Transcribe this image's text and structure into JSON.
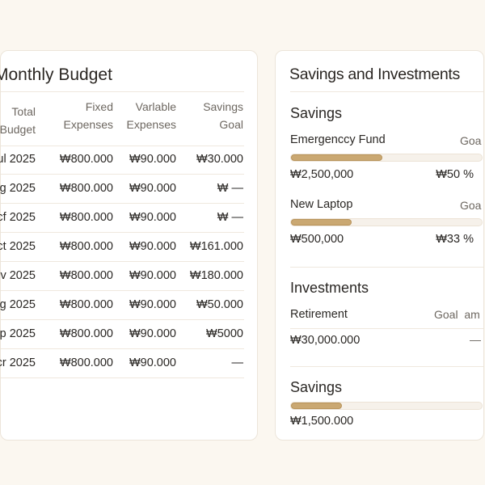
{
  "budget": {
    "title": "Monthly Budget",
    "headers": [
      [
        "Total",
        "Budget"
      ],
      [
        "Fixed",
        "Expenses"
      ],
      [
        "Varlable",
        "Expenses"
      ],
      [
        "Savings",
        "Goal"
      ]
    ],
    "rows": [
      [
        "ul 2025",
        "₩800.000",
        "₩90.000",
        "₩30.000"
      ],
      [
        "g 2025",
        "₩800.000",
        "₩90.000",
        "₩ —"
      ],
      [
        "cf 2025",
        "₩800.000",
        "₩90.000",
        "₩ —"
      ],
      [
        "ct 2025",
        "₩800.000",
        "₩90.000",
        "₩161.000"
      ],
      [
        "v 2025",
        "₩800.000",
        "₩90.000",
        "₩180.000"
      ],
      [
        "g 2025",
        "₩800.000",
        "₩90.000",
        "₩50.000"
      ],
      [
        "p 2025",
        "₩800.000",
        "₩90.000",
        "₩5000"
      ],
      [
        "cr 2025",
        "₩800.000",
        "₩90.000",
        "—"
      ]
    ]
  },
  "savings_investments": {
    "title": "Savings and Investments",
    "savings": {
      "heading": "Savings",
      "items": [
        {
          "name": "Emergenccy Fund",
          "goal_label": "Goa",
          "amount": "₩2,500,000",
          "percent_label": "₩50 %",
          "percent": 50
        },
        {
          "name": "New Laptop",
          "goal_label": "Goa",
          "amount": "₩500,000",
          "percent_label": "₩33 %",
          "percent": 33
        }
      ]
    },
    "investments": {
      "heading": "Investments",
      "name": "Retirement",
      "goal_label": "Goal  am",
      "amount": "₩30,000.000",
      "goal_value": "—"
    },
    "savings2": {
      "heading": "Savings",
      "amount": "₩1,500.000",
      "percent": 28
    }
  },
  "colors": {
    "accent": "#caa872",
    "background": "#fbf7f0"
  }
}
